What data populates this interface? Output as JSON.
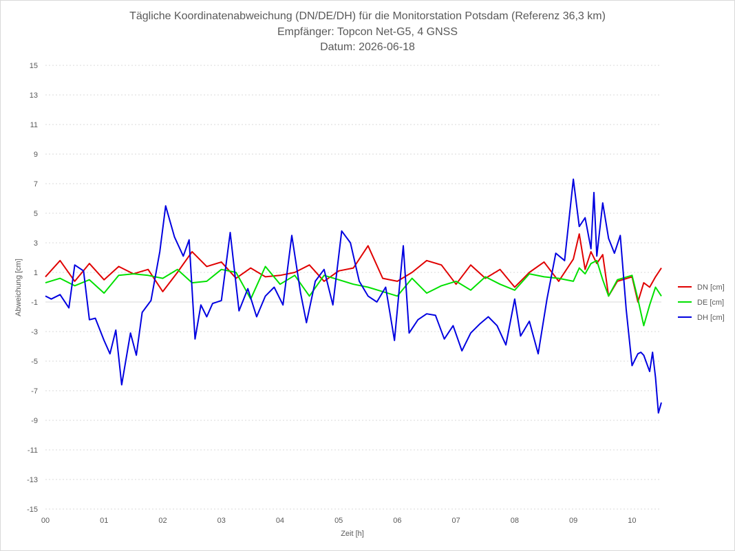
{
  "chart_data": {
    "type": "line",
    "title": "Tägliche Koordinatenabweichung (DN/DE/DH) für die Monitorstation Potsdam (Referenz 36,3 km)",
    "subtitle": "Empfänger: Topcon Net-G5, 4 GNSS",
    "date_line": "Datum: 2026-06-18",
    "xlabel": "Zeit [h]",
    "ylabel": "Abweichung [cm]",
    "xlim": [
      0,
      10.5
    ],
    "ylim": [
      -15,
      15
    ],
    "x_ticks": [
      "00",
      "01",
      "02",
      "03",
      "04",
      "05",
      "06",
      "07",
      "08",
      "09",
      "10"
    ],
    "y_ticks": [
      "15",
      "13",
      "11",
      "9",
      "7",
      "5",
      "3",
      "1",
      "-1",
      "-3",
      "-5",
      "-7",
      "-9",
      "-11",
      "-13",
      "-15"
    ],
    "grid": true,
    "legend_position": "right",
    "series": [
      {
        "name": "DN [cm]",
        "color": "#e00000",
        "x": [
          0,
          0.25,
          0.5,
          0.75,
          1,
          1.25,
          1.5,
          1.75,
          2,
          2.25,
          2.5,
          2.75,
          3,
          3.25,
          3.5,
          3.75,
          4,
          4.25,
          4.5,
          4.75,
          5,
          5.25,
          5.5,
          5.75,
          6,
          6.25,
          6.5,
          6.75,
          7,
          7.25,
          7.5,
          7.75,
          8,
          8.25,
          8.5,
          8.75,
          9,
          9.1,
          9.2,
          9.3,
          9.4,
          9.5,
          9.6,
          9.75,
          10,
          10.1,
          10.2,
          10.3,
          10.4,
          10.5
        ],
        "y": [
          0.7,
          1.8,
          0.4,
          1.6,
          0.5,
          1.4,
          0.9,
          1.2,
          -0.3,
          1.0,
          2.4,
          1.4,
          1.7,
          0.6,
          1.3,
          0.7,
          0.8,
          1.0,
          1.5,
          0.4,
          1.1,
          1.3,
          2.8,
          0.6,
          0.4,
          1.0,
          1.8,
          1.5,
          0.2,
          1.5,
          0.6,
          1.2,
          0.0,
          1.0,
          1.7,
          0.4,
          1.9,
          3.6,
          1.2,
          2.4,
          1.6,
          2.2,
          -0.6,
          0.4,
          0.7,
          -1.0,
          0.3,
          0.0,
          0.7,
          1.3
        ]
      },
      {
        "name": "DE [cm]",
        "color": "#00e000",
        "x": [
          0,
          0.25,
          0.5,
          0.75,
          1,
          1.25,
          1.5,
          1.75,
          2,
          2.25,
          2.5,
          2.75,
          3,
          3.25,
          3.5,
          3.75,
          4,
          4.25,
          4.5,
          4.75,
          5,
          5.25,
          5.5,
          5.75,
          6,
          6.25,
          6.5,
          6.75,
          7,
          7.25,
          7.5,
          7.75,
          8,
          8.25,
          8.5,
          8.75,
          9,
          9.1,
          9.2,
          9.3,
          9.4,
          9.5,
          9.6,
          9.75,
          10,
          10.1,
          10.2,
          10.3,
          10.4,
          10.5
        ],
        "y": [
          0.3,
          0.6,
          0.1,
          0.5,
          -0.4,
          0.8,
          0.9,
          0.8,
          0.6,
          1.2,
          0.3,
          0.4,
          1.2,
          1.0,
          -0.8,
          1.4,
          0.2,
          0.8,
          -0.6,
          0.8,
          0.5,
          0.2,
          0.0,
          -0.3,
          -0.6,
          0.6,
          -0.4,
          0.1,
          0.4,
          -0.2,
          0.7,
          0.2,
          -0.2,
          0.9,
          0.7,
          0.6,
          0.4,
          1.3,
          0.9,
          1.6,
          1.8,
          0.5,
          -0.6,
          0.5,
          0.8,
          -0.8,
          -2.6,
          -1.2,
          0.0,
          -0.6
        ]
      },
      {
        "name": "DH [cm]",
        "color": "#0000e0",
        "x": [
          0,
          0.1,
          0.25,
          0.4,
          0.5,
          0.65,
          0.75,
          0.85,
          1,
          1.1,
          1.2,
          1.3,
          1.45,
          1.55,
          1.65,
          1.8,
          1.95,
          2.05,
          2.2,
          2.35,
          2.45,
          2.55,
          2.65,
          2.75,
          2.85,
          3,
          3.15,
          3.3,
          3.45,
          3.6,
          3.75,
          3.9,
          4.05,
          4.2,
          4.35,
          4.45,
          4.6,
          4.75,
          4.9,
          5.05,
          5.2,
          5.35,
          5.5,
          5.65,
          5.8,
          5.95,
          6.1,
          6.2,
          6.35,
          6.5,
          6.65,
          6.8,
          6.95,
          7.1,
          7.25,
          7.4,
          7.55,
          7.7,
          7.85,
          8,
          8.1,
          8.25,
          8.4,
          8.55,
          8.7,
          8.85,
          9,
          9.1,
          9.2,
          9.3,
          9.35,
          9.4,
          9.5,
          9.6,
          9.7,
          9.8,
          9.9,
          10,
          10.1,
          10.15,
          10.2,
          10.3,
          10.35,
          10.4,
          10.45,
          10.5
        ],
        "y": [
          -0.6,
          -0.8,
          -0.5,
          -1.4,
          1.5,
          1.1,
          -2.2,
          -2.1,
          -3.6,
          -4.5,
          -2.9,
          -6.6,
          -3.1,
          -4.6,
          -1.7,
          -0.9,
          2.4,
          5.5,
          3.4,
          2.1,
          3.2,
          -3.5,
          -1.2,
          -2.0,
          -1.1,
          -0.9,
          3.7,
          -1.6,
          -0.1,
          -2.0,
          -0.6,
          0.0,
          -1.2,
          3.5,
          -0.4,
          -2.4,
          0.4,
          1.2,
          -1.2,
          3.8,
          3.0,
          0.4,
          -0.6,
          -1.0,
          0.0,
          -3.6,
          2.8,
          -3.1,
          -2.2,
          -1.8,
          -1.9,
          -3.5,
          -2.6,
          -4.3,
          -3.1,
          -2.5,
          -2.0,
          -2.6,
          -3.9,
          -0.8,
          -3.3,
          -2.3,
          -4.5,
          -0.8,
          2.3,
          1.8,
          7.3,
          4.1,
          4.7,
          2.6,
          6.4,
          2.1,
          5.7,
          3.3,
          2.3,
          3.5,
          -1.5,
          -5.3,
          -4.5,
          -4.4,
          -4.6,
          -5.7,
          -4.4,
          -6.1,
          -8.5,
          -7.8
        ]
      }
    ]
  }
}
